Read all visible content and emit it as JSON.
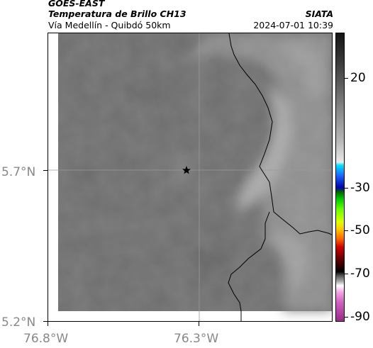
{
  "header": {
    "satellite": "GOES-EAST",
    "product": "Temperatura de Brillo CH13",
    "region": "Vía Medellín - Quibdó 50km",
    "agency": "SIATA",
    "datetime": "2024-07-01 10:39"
  },
  "axes": {
    "y_labels": [
      "5.7°N",
      "5.2°N"
    ],
    "x_labels": [
      "76.8°W",
      "76.3°W"
    ]
  },
  "colorbar": {
    "labels": [
      "20",
      "-30",
      "-50",
      "-70",
      "-90"
    ]
  },
  "map": {
    "marker": "star-icon",
    "colors": {
      "background_gray": "#6e6e6e",
      "cloud_gray": "#a6a6a6",
      "border_line": "#000000",
      "gridline": "#9a9a9a"
    }
  }
}
